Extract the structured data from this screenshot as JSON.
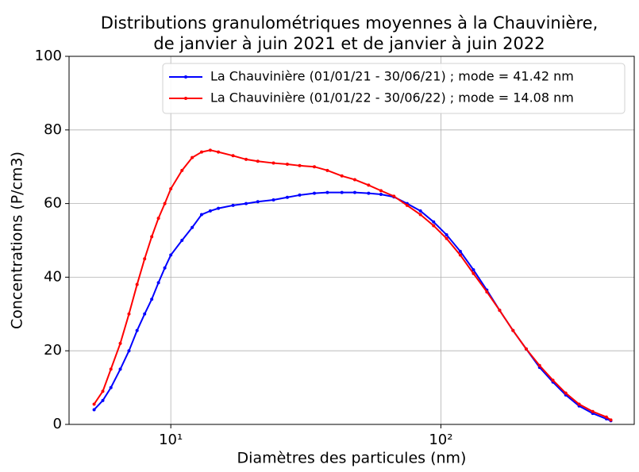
{
  "chart_data": {
    "type": "line",
    "title": [
      "Distributions granulométriques moyennes à la Chauvinière,",
      "de janvier à juin 2021 et de janvier à juin 2022"
    ],
    "xlabel": "Diamètres des particules (nm)",
    "ylabel": "Concentrations (P/cm3)",
    "xscale": "log",
    "xlim": [
      4.2,
      520
    ],
    "ylim": [
      0,
      100
    ],
    "xticks": [
      {
        "value": 10,
        "label": "10¹"
      },
      {
        "value": 100,
        "label": "10²"
      }
    ],
    "yticks": [
      0,
      20,
      40,
      60,
      80,
      100
    ],
    "grid": true,
    "legend": "upper right",
    "x": [
      5.2,
      5.6,
      6,
      6.5,
      7,
      7.5,
      8,
      8.5,
      9,
      9.5,
      10,
      11,
      12,
      13,
      14,
      15,
      17,
      19,
      21,
      24,
      27,
      30,
      34,
      38,
      43,
      48,
      54,
      60,
      67,
      75,
      84,
      94,
      105,
      118,
      132,
      148,
      165,
      185,
      207,
      232,
      260,
      290,
      325,
      365,
      410,
      426
    ],
    "series": [
      {
        "name": "La Chauvinière (01/01/21 - 30/06/21) ; mode = 41.42 nm",
        "color": "#0000ff",
        "values": [
          4,
          6.5,
          10,
          15,
          20,
          25.5,
          30,
          34,
          38.5,
          42.5,
          46,
          50,
          53.5,
          57,
          58,
          58.7,
          59.5,
          60,
          60.5,
          61,
          61.7,
          62.3,
          62.8,
          63,
          63,
          63,
          62.8,
          62.5,
          61.8,
          60,
          58,
          55,
          51.5,
          47,
          42,
          36.5,
          31,
          25.5,
          20.5,
          15.5,
          11.5,
          8,
          5,
          3,
          1.5,
          1
        ]
      },
      {
        "name": "La Chauvinière (01/01/22 - 30/06/22) ; mode = 14.08 nm",
        "color": "#ff0000",
        "values": [
          5.5,
          9,
          15,
          22,
          30,
          38,
          45,
          51,
          56,
          60,
          64,
          69,
          72.5,
          74,
          74.5,
          74,
          73,
          72,
          71.5,
          71,
          70.7,
          70.3,
          70,
          69,
          67.5,
          66.5,
          65,
          63.5,
          62,
          59.5,
          57,
          54,
          50.5,
          46,
          41,
          36,
          31,
          25.5,
          20.5,
          16,
          12,
          8.5,
          5.5,
          3.5,
          2,
          1.2
        ]
      }
    ]
  }
}
